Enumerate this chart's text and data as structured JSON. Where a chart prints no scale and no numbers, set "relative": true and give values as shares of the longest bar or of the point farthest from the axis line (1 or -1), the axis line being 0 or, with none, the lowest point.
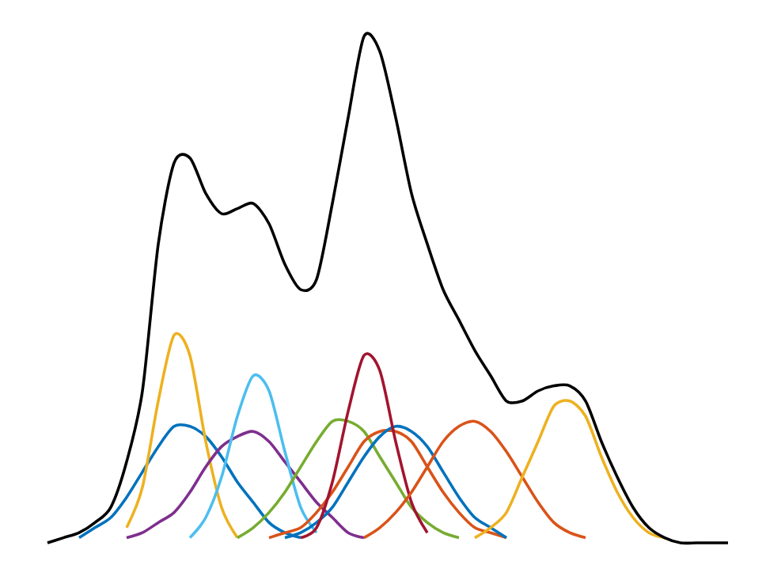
{
  "chart_data": {
    "type": "line",
    "relative": true,
    "marker": "none",
    "line_style": "solid",
    "categories": [
      null,
      null,
      null,
      null,
      null,
      null,
      null,
      null,
      null,
      null,
      null,
      null,
      null,
      null,
      null,
      null,
      null,
      null,
      null,
      null,
      null,
      null,
      null,
      null,
      null,
      null,
      null,
      null,
      null,
      null,
      null,
      null,
      null,
      null,
      null,
      null,
      null,
      null,
      null,
      null,
      null,
      null,
      null,
      null
    ],
    "series": [
      {
        "color": "#0072BD",
        "values": [
          null,
          null,
          0.01,
          0.03,
          0.05,
          0.09,
          0.14,
          0.19,
          0.23,
          0.23,
          0.21,
          0.17,
          0.12,
          0.08,
          0.04,
          0.02,
          0.01,
          null,
          null,
          null,
          null,
          null,
          null,
          null,
          null,
          null,
          null,
          null,
          null,
          null,
          null,
          null,
          null,
          null,
          null,
          null,
          null,
          null,
          null,
          null,
          null,
          null,
          null,
          null
        ]
      },
      {
        "color": "#EDB120",
        "values": [
          null,
          null,
          null,
          null,
          null,
          0.03,
          0.11,
          0.28,
          0.41,
          0.37,
          0.2,
          0.07,
          0.01,
          null,
          null,
          null,
          null,
          null,
          null,
          null,
          null,
          null,
          null,
          null,
          null,
          null,
          null,
          null,
          null,
          null,
          null,
          null,
          null,
          null,
          null,
          null,
          null,
          null,
          null,
          null,
          null,
          null,
          null,
          null
        ]
      },
      {
        "color": "#7E2F8E",
        "values": [
          null,
          null,
          null,
          null,
          null,
          0.01,
          0.02,
          0.04,
          0.06,
          0.1,
          0.15,
          0.19,
          0.21,
          0.22,
          0.2,
          0.16,
          0.12,
          0.08,
          0.05,
          0.02,
          0.01,
          null,
          null,
          null,
          null,
          null,
          null,
          null,
          null,
          null,
          null,
          null,
          null,
          null,
          null,
          null,
          null,
          null,
          null,
          null,
          null,
          null,
          null,
          null
        ]
      },
      {
        "color": "#4DBEEE",
        "values": [
          null,
          null,
          null,
          null,
          null,
          null,
          null,
          null,
          null,
          0.01,
          0.05,
          0.13,
          0.25,
          0.33,
          0.3,
          0.18,
          0.07,
          0.02,
          null,
          null,
          null,
          null,
          null,
          null,
          null,
          null,
          null,
          null,
          null,
          null,
          null,
          null,
          null,
          null,
          null,
          null,
          null,
          null,
          null,
          null,
          null,
          null,
          null,
          null
        ]
      },
      {
        "color": "#77AC30",
        "values": [
          null,
          null,
          null,
          null,
          null,
          null,
          null,
          null,
          null,
          null,
          null,
          null,
          0.01,
          0.03,
          0.06,
          0.1,
          0.15,
          0.2,
          0.24,
          0.24,
          0.22,
          0.17,
          0.12,
          0.07,
          0.04,
          0.02,
          0.01,
          null,
          null,
          null,
          null,
          null,
          null,
          null,
          null,
          null,
          null,
          null,
          null,
          null,
          null,
          null,
          null,
          null
        ]
      },
      {
        "color": "#D95319",
        "values": [
          null,
          null,
          null,
          null,
          null,
          null,
          null,
          null,
          null,
          null,
          null,
          null,
          null,
          null,
          0.01,
          0.02,
          0.03,
          0.06,
          0.1,
          0.15,
          0.2,
          0.22,
          0.22,
          0.2,
          0.15,
          0.1,
          0.06,
          0.03,
          0.02,
          0.01,
          null,
          null,
          null,
          null,
          null,
          null,
          null,
          null,
          null,
          null,
          null,
          null,
          null,
          null
        ]
      },
      {
        "color": "#0072BD",
        "values": [
          null,
          null,
          null,
          null,
          null,
          null,
          null,
          null,
          null,
          null,
          null,
          null,
          null,
          null,
          null,
          0.01,
          0.02,
          0.04,
          0.07,
          0.12,
          0.17,
          0.21,
          0.23,
          0.22,
          0.19,
          0.14,
          0.09,
          0.05,
          0.03,
          0.01,
          null,
          null,
          null,
          null,
          null,
          null,
          null,
          null,
          null,
          null,
          null,
          null,
          null,
          null
        ]
      },
      {
        "color": "#A2142F",
        "values": [
          null,
          null,
          null,
          null,
          null,
          null,
          null,
          null,
          null,
          null,
          null,
          null,
          null,
          null,
          null,
          null,
          0.01,
          0.03,
          0.12,
          0.26,
          0.37,
          0.34,
          0.2,
          0.08,
          0.02,
          null,
          null,
          null,
          null,
          null,
          null,
          null,
          null,
          null,
          null,
          null,
          null,
          null,
          null,
          null,
          null,
          null,
          null,
          null
        ]
      },
      {
        "color": "#D95319",
        "values": [
          null,
          null,
          null,
          null,
          null,
          null,
          null,
          null,
          null,
          null,
          null,
          null,
          null,
          null,
          null,
          null,
          null,
          null,
          null,
          null,
          0.01,
          0.03,
          0.06,
          0.1,
          0.15,
          0.2,
          0.23,
          0.24,
          0.22,
          0.18,
          0.13,
          0.08,
          0.04,
          0.02,
          0.01,
          null,
          null,
          null,
          null,
          null,
          null,
          null,
          null,
          null
        ]
      },
      {
        "color": "#EDB120",
        "values": [
          null,
          null,
          null,
          null,
          null,
          null,
          null,
          null,
          null,
          null,
          null,
          null,
          null,
          null,
          null,
          null,
          null,
          null,
          null,
          null,
          null,
          null,
          null,
          null,
          null,
          null,
          null,
          0.01,
          0.03,
          0.06,
          0.13,
          0.2,
          0.27,
          0.28,
          0.25,
          0.17,
          0.1,
          0.05,
          0.02,
          0.01,
          null,
          null,
          null,
          null
        ]
      },
      {
        "color": "#000000",
        "values": [
          0,
          0.01,
          0.02,
          0.04,
          0.07,
          0.16,
          0.3,
          0.59,
          0.75,
          0.76,
          0.69,
          0.65,
          0.66,
          0.67,
          0.63,
          0.55,
          0.5,
          0.52,
          0.67,
          0.84,
          1,
          0.97,
          0.84,
          0.69,
          0.59,
          0.5,
          0.44,
          0.38,
          0.33,
          0.28,
          0.28,
          0.3,
          0.31,
          0.31,
          0.28,
          0.2,
          0.13,
          0.07,
          0.03,
          0.01,
          0,
          0,
          0,
          0
        ]
      }
    ]
  }
}
